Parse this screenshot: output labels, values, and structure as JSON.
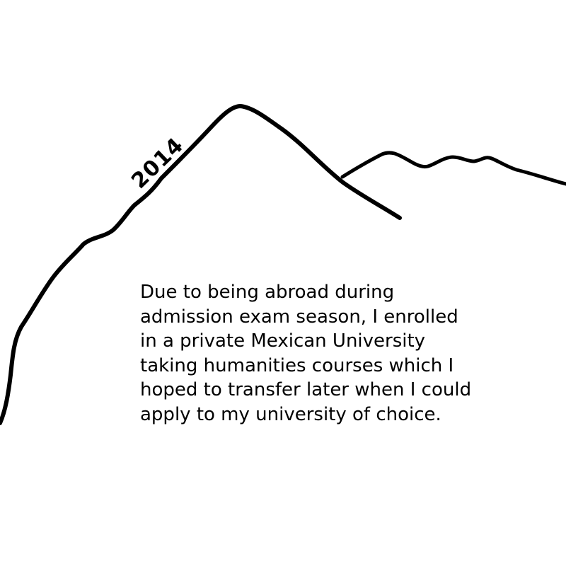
{
  "milestone": {
    "year": "2014"
  },
  "caption": {
    "lines": [
      "Due to being abroad during",
      "admission exam season, I enrolled",
      "in a private Mexican University",
      "taking humanities courses which I",
      "hoped to transfer later when I could",
      "apply to my university of choice."
    ]
  },
  "colors": {
    "ink": "#000000",
    "background": "#ffffff"
  }
}
